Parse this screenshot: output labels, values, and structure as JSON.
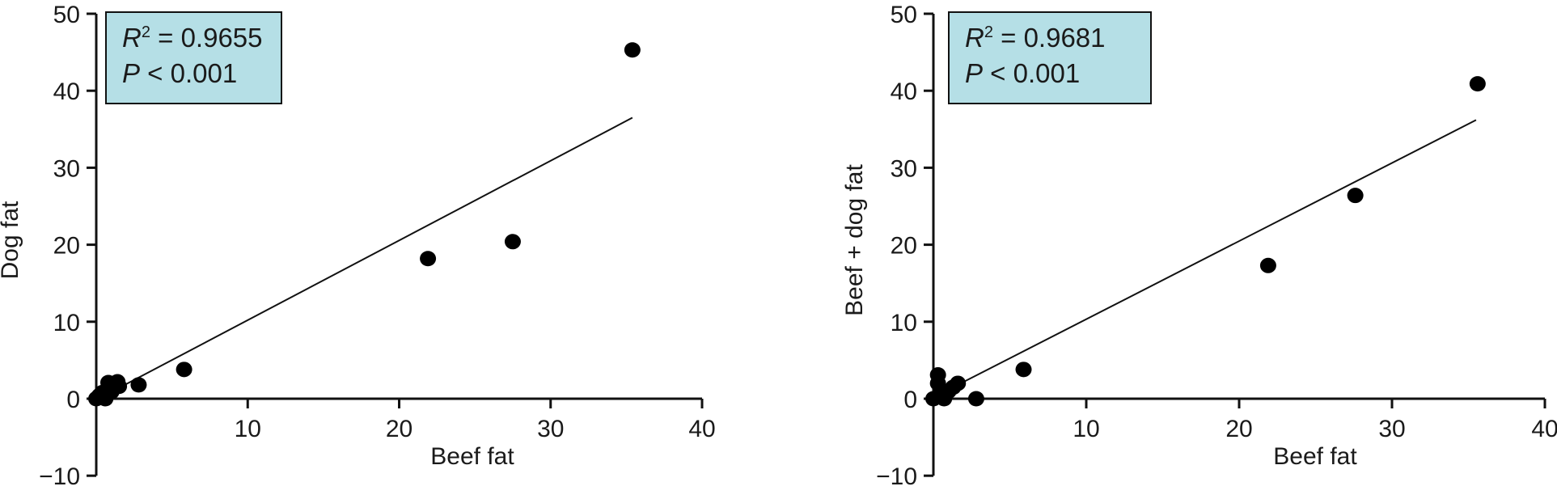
{
  "chart_data": [
    {
      "type": "scatter",
      "xlabel": "Beef fat",
      "ylabel": "Dog fat",
      "xlim": [
        0,
        40
      ],
      "ylim": [
        -10,
        50
      ],
      "xticks": [
        "10",
        "20",
        "30",
        "40"
      ],
      "yticks": [
        "−10",
        "0",
        "10",
        "20",
        "30",
        "40",
        "50"
      ],
      "stats": {
        "r_label": "R",
        "r_sup": "2",
        "r_value": " = 0.9655",
        "p_label": "P",
        "p_value": " < 0.001"
      },
      "stats_box_color": "#b5dfe6",
      "points": [
        {
          "x": 0.0,
          "y": 0.0
        },
        {
          "x": 0.2,
          "y": 0.4
        },
        {
          "x": 0.4,
          "y": 0.8
        },
        {
          "x": 0.6,
          "y": 0.0
        },
        {
          "x": 0.8,
          "y": 2.1
        },
        {
          "x": 1.0,
          "y": 0.9
        },
        {
          "x": 1.4,
          "y": 2.2
        },
        {
          "x": 1.5,
          "y": 1.6
        },
        {
          "x": 2.8,
          "y": 1.8
        },
        {
          "x": 5.8,
          "y": 3.8
        },
        {
          "x": 21.9,
          "y": 18.2
        },
        {
          "x": 27.5,
          "y": 20.4
        },
        {
          "x": 35.4,
          "y": 45.3
        }
      ],
      "fit": {
        "x0": 1.4,
        "y0": 1.3,
        "x1": 35.4,
        "y1": 36.5
      }
    },
    {
      "type": "scatter",
      "xlabel": "Beef fat",
      "ylabel": "Beef + dog fat",
      "xlim": [
        0,
        40
      ],
      "ylim": [
        -10,
        50
      ],
      "xticks": [
        "10",
        "20",
        "30",
        "40"
      ],
      "yticks": [
        "−10",
        "0",
        "10",
        "20",
        "30",
        "40",
        "50"
      ],
      "stats": {
        "r_label": "R",
        "r_sup": "2",
        "r_value": " = 0.9681",
        "p_label": "P",
        "p_value": " < 0.001"
      },
      "stats_box_color": "#b5dfe6",
      "points": [
        {
          "x": 0.0,
          "y": 0.0
        },
        {
          "x": 0.3,
          "y": 3.1
        },
        {
          "x": 0.3,
          "y": 2.0
        },
        {
          "x": 0.5,
          "y": 0.7
        },
        {
          "x": 0.7,
          "y": 0.0
        },
        {
          "x": 1.0,
          "y": 1.0
        },
        {
          "x": 1.3,
          "y": 1.5
        },
        {
          "x": 1.6,
          "y": 2.0
        },
        {
          "x": 2.8,
          "y": 0.0
        },
        {
          "x": 5.9,
          "y": 3.8
        },
        {
          "x": 21.9,
          "y": 17.3
        },
        {
          "x": 27.6,
          "y": 26.4
        },
        {
          "x": 35.6,
          "y": 40.9
        }
      ],
      "fit": {
        "x0": 1.4,
        "y0": 1.6,
        "x1": 35.5,
        "y1": 36.2
      }
    }
  ]
}
